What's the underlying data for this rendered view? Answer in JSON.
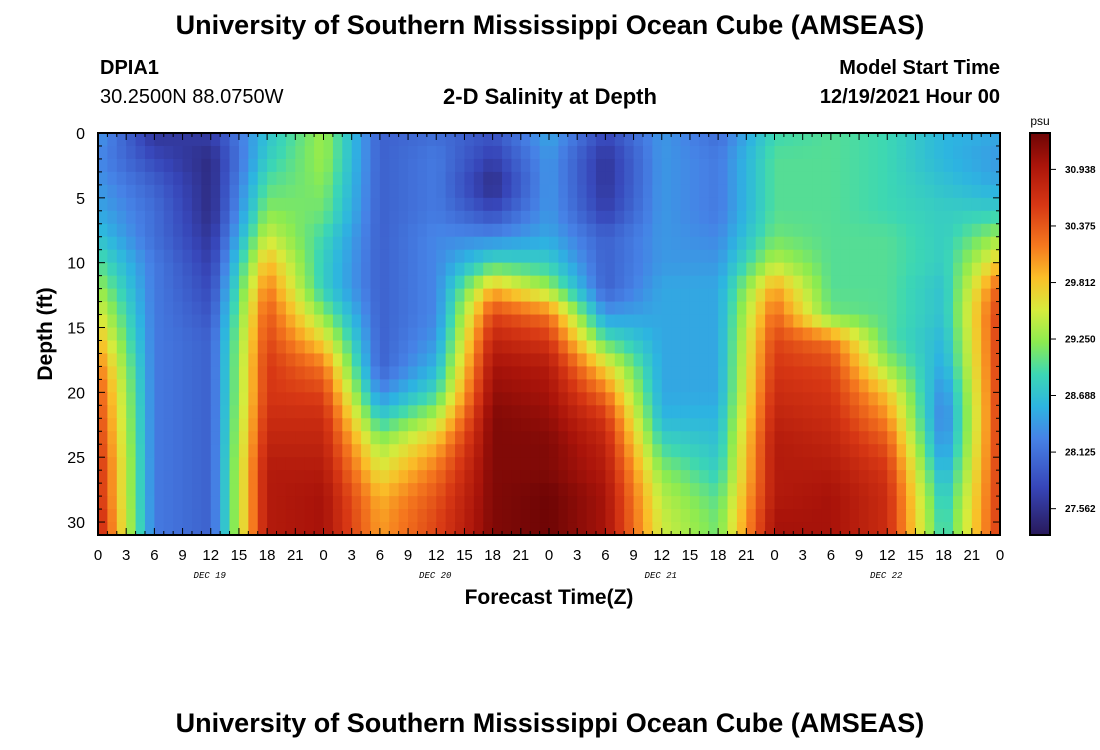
{
  "header": {
    "title": "University of Southern Mississippi Ocean Cube (AMSEAS)",
    "station_id": "DPIA1",
    "station_coords": "30.2500N  88.0750W",
    "plot_title": "2-D Salinity at Depth",
    "start_label": "Model Start Time",
    "start_value": "12/19/2021 Hour 00"
  },
  "footer": {
    "title": "University of Southern Mississippi Ocean Cube (AMSEAS)"
  },
  "chart_data": {
    "type": "heatmap",
    "xlabel": "Forecast Time(Z)",
    "ylabel": "Depth (ft)",
    "x_tick_labels": [
      "0",
      "3",
      "6",
      "9",
      "12",
      "15",
      "18",
      "21",
      "0",
      "3",
      "6",
      "9",
      "12",
      "15",
      "18",
      "21",
      "0",
      "3",
      "6",
      "9",
      "12",
      "15",
      "18",
      "21",
      "0",
      "3",
      "6",
      "9",
      "12",
      "15",
      "18",
      "21",
      "0"
    ],
    "day_labels": [
      "DEC 19",
      "DEC 20",
      "DEC 21",
      "DEC 22"
    ],
    "xlim_hours": [
      0,
      96
    ],
    "y_ticks": [
      0,
      5,
      10,
      15,
      20,
      25,
      30
    ],
    "ylim": [
      0,
      31
    ],
    "colorbar": {
      "unit": "psu",
      "ticks": [
        30.938,
        30.375,
        29.812,
        29.25,
        28.688,
        28.125,
        27.562
      ],
      "range": [
        27.3,
        31.3
      ]
    },
    "depth_levels": [
      0,
      2,
      4,
      6,
      8,
      10,
      12,
      14,
      16,
      18,
      20,
      22,
      24,
      26,
      28,
      30
    ],
    "hours": [
      0,
      6,
      12,
      18,
      24,
      30,
      36,
      42,
      48,
      54,
      60,
      66,
      72,
      78,
      84,
      90,
      96
    ],
    "salinity_psu": [
      [
        28.4,
        27.6,
        27.7,
        28.7,
        29.3,
        28.0,
        28.1,
        27.9,
        28.5,
        27.8,
        28.4,
        28.1,
        28.9,
        29.0,
        28.9,
        28.6,
        28.5
      ],
      [
        28.3,
        27.8,
        27.5,
        28.8,
        29.3,
        28.0,
        28.2,
        27.7,
        28.4,
        27.6,
        28.4,
        28.2,
        29.0,
        29.0,
        28.9,
        28.6,
        28.4
      ],
      [
        28.4,
        28.0,
        27.5,
        29.0,
        29.2,
        28.0,
        28.2,
        27.5,
        28.4,
        27.6,
        28.4,
        28.2,
        29.0,
        29.0,
        28.9,
        28.7,
        28.5
      ],
      [
        28.5,
        28.1,
        27.5,
        29.2,
        29.1,
        28.0,
        28.2,
        27.8,
        28.4,
        27.7,
        28.4,
        28.2,
        29.0,
        29.0,
        28.9,
        28.8,
        28.8
      ],
      [
        28.7,
        28.1,
        27.6,
        29.5,
        28.9,
        28.0,
        28.3,
        28.3,
        28.5,
        28.0,
        28.4,
        28.3,
        29.1,
        29.0,
        29.0,
        28.8,
        29.3
      ],
      [
        29.0,
        28.2,
        27.7,
        29.9,
        28.8,
        28.0,
        28.3,
        28.9,
        28.8,
        28.0,
        28.4,
        28.4,
        29.4,
        29.0,
        29.0,
        28.8,
        29.8
      ],
      [
        29.3,
        28.2,
        27.8,
        30.2,
        28.8,
        28.0,
        28.3,
        29.9,
        29.3,
        28.0,
        28.5,
        28.5,
        30.0,
        29.0,
        29.0,
        28.7,
        30.4
      ],
      [
        29.6,
        28.2,
        27.9,
        30.4,
        29.2,
        28.0,
        28.3,
        30.5,
        30.2,
        28.4,
        28.5,
        28.5,
        30.3,
        29.1,
        29.0,
        28.7,
        30.6
      ],
      [
        29.9,
        28.2,
        28.0,
        30.5,
        29.7,
        28.0,
        28.4,
        30.8,
        30.6,
        29.0,
        28.5,
        28.5,
        30.5,
        30.2,
        29.0,
        28.6,
        30.6
      ],
      [
        30.2,
        28.2,
        28.0,
        30.6,
        30.2,
        28.0,
        28.6,
        31.0,
        30.9,
        29.7,
        28.5,
        28.5,
        30.6,
        30.5,
        29.3,
        28.5,
        30.6
      ],
      [
        30.4,
        28.2,
        28.0,
        30.6,
        30.5,
        28.3,
        28.9,
        31.1,
        31.0,
        30.2,
        28.5,
        28.5,
        30.7,
        30.6,
        29.8,
        28.3,
        30.6
      ],
      [
        30.5,
        28.2,
        28.0,
        30.7,
        30.7,
        28.8,
        29.4,
        31.2,
        31.1,
        30.6,
        28.6,
        28.6,
        30.8,
        30.7,
        30.1,
        28.2,
        30.6
      ],
      [
        30.6,
        28.2,
        28.0,
        30.8,
        30.8,
        29.3,
        29.9,
        31.2,
        31.2,
        30.8,
        28.9,
        28.7,
        30.9,
        30.8,
        30.4,
        28.3,
        30.6
      ],
      [
        30.7,
        28.2,
        28.0,
        30.9,
        30.9,
        29.6,
        30.2,
        31.2,
        31.2,
        30.9,
        29.2,
        28.8,
        30.9,
        30.9,
        30.6,
        28.5,
        30.6
      ],
      [
        30.7,
        28.2,
        28.0,
        30.9,
        31.0,
        29.9,
        30.4,
        31.2,
        31.3,
        31.0,
        29.4,
        29.0,
        30.9,
        31.0,
        30.7,
        28.7,
        30.6
      ],
      [
        30.8,
        28.2,
        28.0,
        30.9,
        31.0,
        30.0,
        30.5,
        31.2,
        31.3,
        31.0,
        29.5,
        29.1,
        31.0,
        31.0,
        30.7,
        28.8,
        30.6
      ]
    ]
  }
}
